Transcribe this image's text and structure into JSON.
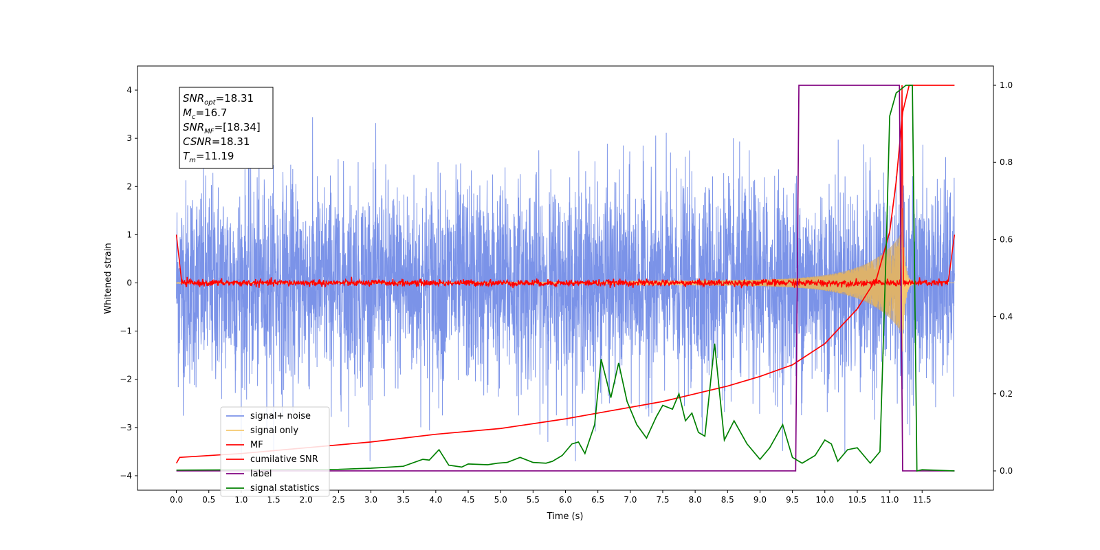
{
  "chart_data": {
    "type": "line",
    "xlabel": "Time (s)",
    "ylabel": "Whitened strain",
    "xlim": [
      -0.6,
      12.6
    ],
    "ylim": [
      -4.3,
      4.5
    ],
    "y2lim": [
      -0.05,
      1.05
    ],
    "x_ticks": [
      "0.0",
      "0.5",
      "1.0",
      "1.5",
      "2.0",
      "2.5",
      "3.0",
      "3.5",
      "4.0",
      "4.5",
      "5.0",
      "5.5",
      "6.0",
      "6.5",
      "7.0",
      "7.5",
      "8.0",
      "8.5",
      "9.0",
      "9.5",
      "10.0",
      "10.5",
      "11.0",
      "11.5"
    ],
    "y_ticks": [
      "−4",
      "−3",
      "−2",
      "−1",
      "0",
      "1",
      "2",
      "3",
      "4"
    ],
    "y2_ticks": [
      "0.0",
      "0.2",
      "0.4",
      "0.6",
      "0.8",
      "1.0"
    ],
    "annotation": [
      {
        "sym": "SNR",
        "sub": "opt",
        "val": "=18.31"
      },
      {
        "sym": "M",
        "sub": "c",
        "val": "=16.7"
      },
      {
        "sym": "SNR",
        "sub": "MF",
        "val": "=[18.34]"
      },
      {
        "sym": "CSNR",
        "sub": "",
        "val": "=18.31"
      },
      {
        "sym": "T",
        "sub": "m",
        "val": "=11.19"
      }
    ],
    "legend_position": "lower-left",
    "series": [
      {
        "name": "signal+ noise",
        "color": "#7b93e8",
        "axis": "left",
        "kind": "noise",
        "x_range": [
          0,
          12.0
        ],
        "sigma": 1.0
      },
      {
        "name": "signal only",
        "color": "#f5c86e",
        "axis": "left",
        "kind": "chirp",
        "x_range": [
          0,
          12.0
        ],
        "merger_time": 11.19
      },
      {
        "name": "MF",
        "color": "#ff0000",
        "axis": "left",
        "kind": "mf",
        "x_range": [
          0,
          12.0
        ],
        "peak_time": 11.19,
        "peak_value": 4.1
      },
      {
        "name": "cumilative SNR",
        "color": "#ff0000",
        "axis": "right",
        "points": [
          [
            0,
            0.02
          ],
          [
            0.05,
            0.035
          ],
          [
            1,
            0.045
          ],
          [
            2,
            0.06
          ],
          [
            3,
            0.075
          ],
          [
            4,
            0.095
          ],
          [
            5,
            0.11
          ],
          [
            6,
            0.135
          ],
          [
            7,
            0.165
          ],
          [
            7.5,
            0.18
          ],
          [
            8,
            0.2
          ],
          [
            8.5,
            0.22
          ],
          [
            9,
            0.245
          ],
          [
            9.5,
            0.275
          ],
          [
            10,
            0.33
          ],
          [
            10.5,
            0.42
          ],
          [
            10.8,
            0.5
          ],
          [
            11.0,
            0.62
          ],
          [
            11.1,
            0.75
          ],
          [
            11.2,
            0.93
          ],
          [
            11.3,
            1.0
          ],
          [
            12.0,
            1.0
          ]
        ]
      },
      {
        "name": "label",
        "color": "#800080",
        "axis": "right",
        "points": [
          [
            0,
            0
          ],
          [
            9.55,
            0
          ],
          [
            9.6,
            1
          ],
          [
            11.15,
            1
          ],
          [
            11.2,
            0
          ],
          [
            12.0,
            0
          ]
        ]
      },
      {
        "name": "signal statistics",
        "color": "#008000",
        "axis": "right",
        "points": [
          [
            0,
            0.002
          ],
          [
            2.5,
            0.004
          ],
          [
            3,
            0.007
          ],
          [
            3.3,
            0.01
          ],
          [
            3.5,
            0.012
          ],
          [
            3.8,
            0.03
          ],
          [
            3.9,
            0.028
          ],
          [
            4.05,
            0.055
          ],
          [
            4.2,
            0.015
          ],
          [
            4.4,
            0.01
          ],
          [
            4.5,
            0.018
          ],
          [
            4.8,
            0.016
          ],
          [
            4.95,
            0.02
          ],
          [
            5.1,
            0.022
          ],
          [
            5.3,
            0.035
          ],
          [
            5.5,
            0.022
          ],
          [
            5.7,
            0.02
          ],
          [
            5.8,
            0.025
          ],
          [
            5.95,
            0.04
          ],
          [
            6.1,
            0.07
          ],
          [
            6.2,
            0.075
          ],
          [
            6.3,
            0.045
          ],
          [
            6.45,
            0.12
          ],
          [
            6.55,
            0.29
          ],
          [
            6.7,
            0.19
          ],
          [
            6.82,
            0.28
          ],
          [
            6.95,
            0.18
          ],
          [
            7.1,
            0.12
          ],
          [
            7.25,
            0.085
          ],
          [
            7.4,
            0.14
          ],
          [
            7.5,
            0.17
          ],
          [
            7.65,
            0.16
          ],
          [
            7.75,
            0.2
          ],
          [
            7.85,
            0.13
          ],
          [
            7.95,
            0.15
          ],
          [
            8.05,
            0.1
          ],
          [
            8.15,
            0.09
          ],
          [
            8.3,
            0.33
          ],
          [
            8.45,
            0.08
          ],
          [
            8.6,
            0.13
          ],
          [
            8.8,
            0.07
          ],
          [
            9.0,
            0.03
          ],
          [
            9.15,
            0.06
          ],
          [
            9.35,
            0.12
          ],
          [
            9.5,
            0.035
          ],
          [
            9.65,
            0.02
          ],
          [
            9.85,
            0.04
          ],
          [
            10.0,
            0.08
          ],
          [
            10.1,
            0.07
          ],
          [
            10.2,
            0.025
          ],
          [
            10.35,
            0.055
          ],
          [
            10.5,
            0.06
          ],
          [
            10.7,
            0.02
          ],
          [
            10.85,
            0.05
          ],
          [
            10.95,
            0.6
          ],
          [
            11.0,
            0.92
          ],
          [
            11.1,
            0.98
          ],
          [
            11.25,
            1.0
          ],
          [
            11.35,
            1.0
          ],
          [
            11.42,
            0.0
          ],
          [
            11.5,
            0.003
          ],
          [
            12.0,
            0.0
          ]
        ]
      }
    ]
  }
}
